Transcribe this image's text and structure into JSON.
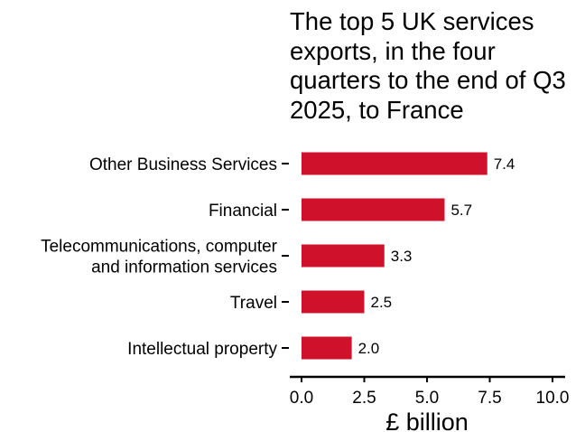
{
  "chart_data": {
    "type": "bar",
    "orientation": "horizontal",
    "title": "The top 5 UK services exports, in the four quarters to the end of Q3 2025, to France",
    "xlabel": "£ billion",
    "ylabel": "",
    "categories": [
      [
        "Other Business Services"
      ],
      [
        "Financial"
      ],
      [
        "Telecommunications, computer",
        "and information services"
      ],
      [
        "Travel"
      ],
      [
        "Intellectual property"
      ]
    ],
    "values": [
      7.4,
      5.7,
      3.3,
      2.5,
      2.0
    ],
    "value_labels": [
      "7.4",
      "5.7",
      "3.3",
      "2.5",
      "2.0"
    ],
    "xlim": [
      0,
      10
    ],
    "xticks": [
      0,
      2.5,
      5,
      7.5,
      10
    ],
    "xtick_labels": [
      "0.0",
      "2.5",
      "5.0",
      "7.5",
      "10.0"
    ],
    "bar_color": "#d0112b",
    "grid": false,
    "legend": "none"
  }
}
